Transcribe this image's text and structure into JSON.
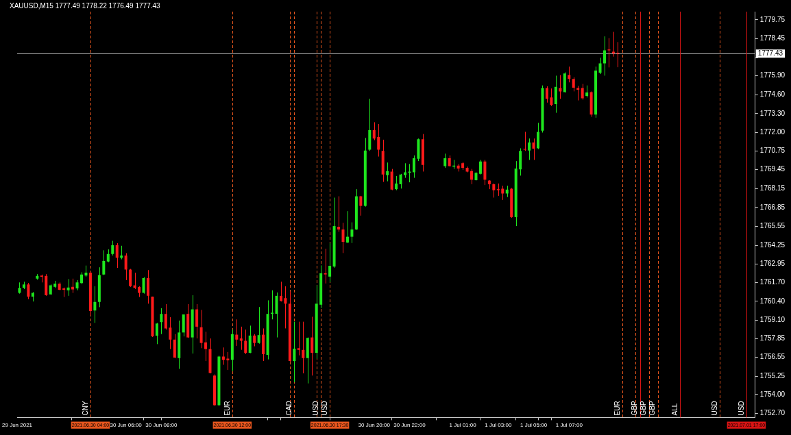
{
  "chart_data": {
    "type": "candlestick",
    "title": "XAUUSD,M15 1777.49 1778.22 1776.49 1777.43",
    "x": [
      "2021-06-30T00:00",
      "2021-06-30T00:15",
      "2021-06-30T00:30",
      "2021-06-30T00:45",
      "2021-06-30T01:00",
      "2021-06-30T01:15",
      "2021-06-30T01:30",
      "2021-06-30T01:45",
      "2021-06-30T02:00",
      "2021-06-30T02:15",
      "2021-06-30T02:30",
      "2021-06-30T02:45",
      "2021-06-30T03:00",
      "2021-06-30T03:15",
      "2021-06-30T03:30",
      "2021-06-30T03:45",
      "2021-06-30T04:00",
      "2021-06-30T04:15",
      "2021-06-30T04:30",
      "2021-06-30T04:45",
      "2021-06-30T05:00",
      "2021-06-30T05:15",
      "2021-06-30T05:30",
      "2021-06-30T05:45",
      "2021-06-30T06:00",
      "2021-06-30T06:15",
      "2021-06-30T06:30",
      "2021-06-30T06:45",
      "2021-06-30T07:00",
      "2021-06-30T07:15",
      "2021-06-30T07:30",
      "2021-06-30T07:45",
      "2021-06-30T08:00",
      "2021-06-30T08:15",
      "2021-06-30T08:30",
      "2021-06-30T08:45",
      "2021-06-30T09:00",
      "2021-06-30T09:15",
      "2021-06-30T09:30",
      "2021-06-30T09:45",
      "2021-06-30T10:00",
      "2021-06-30T10:15",
      "2021-06-30T10:30",
      "2021-06-30T10:45",
      "2021-06-30T11:00",
      "2021-06-30T11:15",
      "2021-06-30T11:30",
      "2021-06-30T11:45",
      "2021-06-30T12:00",
      "2021-06-30T12:15",
      "2021-06-30T12:30",
      "2021-06-30T12:45",
      "2021-06-30T13:00",
      "2021-06-30T13:15",
      "2021-06-30T13:30",
      "2021-06-30T13:45",
      "2021-06-30T14:00",
      "2021-06-30T14:15",
      "2021-06-30T14:30",
      "2021-06-30T14:45",
      "2021-06-30T15:00",
      "2021-06-30T15:15",
      "2021-06-30T15:30",
      "2021-06-30T15:45",
      "2021-06-30T16:00",
      "2021-06-30T16:15",
      "2021-06-30T16:30",
      "2021-06-30T16:45",
      "2021-06-30T17:00",
      "2021-06-30T17:15",
      "2021-06-30T17:30",
      "2021-06-30T17:45",
      "2021-06-30T18:00",
      "2021-06-30T18:15",
      "2021-06-30T18:30",
      "2021-06-30T18:45",
      "2021-06-30T19:00",
      "2021-06-30T19:15",
      "2021-06-30T19:30",
      "2021-06-30T19:45",
      "2021-06-30T20:00",
      "2021-06-30T20:15",
      "2021-06-30T20:30",
      "2021-06-30T20:45",
      "2021-06-30T21:00",
      "2021-06-30T21:15",
      "2021-06-30T21:30",
      "2021-06-30T21:45",
      "2021-06-30T22:00",
      "2021-06-30T22:15",
      "2021-06-30T22:30",
      "2021-06-30T22:45",
      "2021-07-01T00:00",
      "2021-07-01T00:15",
      "2021-07-01T00:30",
      "2021-07-01T00:45",
      "2021-07-01T01:00",
      "2021-07-01T01:15",
      "2021-07-01T01:30",
      "2021-07-01T01:45",
      "2021-07-01T02:00",
      "2021-07-01T02:15",
      "2021-07-01T02:30",
      "2021-07-01T02:45",
      "2021-07-01T03:00",
      "2021-07-01T03:15",
      "2021-07-01T03:30",
      "2021-07-01T03:45",
      "2021-07-01T04:00",
      "2021-07-01T04:15",
      "2021-07-01T04:30",
      "2021-07-01T04:45",
      "2021-07-01T05:00",
      "2021-07-01T05:15",
      "2021-07-01T05:30",
      "2021-07-01T05:45",
      "2021-07-01T06:00",
      "2021-07-01T06:15",
      "2021-07-01T06:30",
      "2021-07-01T06:45",
      "2021-07-01T07:00",
      "2021-07-01T07:15",
      "2021-07-01T07:30",
      "2021-07-01T07:45",
      "2021-07-01T08:00",
      "2021-07-01T08:15",
      "2021-07-01T08:30",
      "2021-07-01T08:45",
      "2021-07-01T09:00",
      "2021-07-01T09:15",
      "2021-07-01T09:30",
      "2021-07-01T09:45"
    ],
    "ohlc": [
      [
        1760.98,
        1761.7,
        1760.93,
        1761.32
      ],
      [
        1761.32,
        1761.75,
        1761.24,
        1761.56
      ],
      [
        1761.56,
        1761.66,
        1760.55,
        1760.73
      ],
      [
        1760.73,
        1761.04,
        1760.39,
        1760.98
      ],
      [
        1761.96,
        1762.27,
        1761.89,
        1762.15
      ],
      [
        1762.17,
        1762.24,
        1761.7,
        1762.09
      ],
      [
        1762.15,
        1762.27,
        1760.78,
        1760.82
      ],
      [
        1760.88,
        1761.56,
        1760.85,
        1761.5
      ],
      [
        1761.39,
        1761.81,
        1761.32,
        1761.62
      ],
      [
        1761.62,
        1761.7,
        1761.16,
        1761.19
      ],
      [
        1761.29,
        1761.35,
        1760.7,
        1761.19
      ],
      [
        1761.16,
        1761.93,
        1760.78,
        1761.35
      ],
      [
        1761.39,
        1761.96,
        1760.98,
        1761.22
      ],
      [
        1761.29,
        1761.86,
        1761.16,
        1761.7
      ],
      [
        1761.66,
        1762.4,
        1761.59,
        1762.24
      ],
      [
        1762.17,
        1762.86,
        1762.09,
        1762.37
      ],
      [
        1762.37,
        1762.43,
        1759.46,
        1759.74
      ],
      [
        1759.77,
        1761.44,
        1758.92,
        1760.36
      ],
      [
        1760.36,
        1762.74,
        1760.0,
        1762.21
      ],
      [
        1762.24,
        1763.91,
        1762.21,
        1763.17
      ],
      [
        1763.14,
        1763.97,
        1763.09,
        1763.66
      ],
      [
        1763.66,
        1764.56,
        1763.55,
        1764.25
      ],
      [
        1764.25,
        1764.4,
        1762.7,
        1763.4
      ],
      [
        1763.4,
        1764.22,
        1763.29,
        1763.55
      ],
      [
        1763.55,
        1763.71,
        1761.86,
        1762.58
      ],
      [
        1762.58,
        1762.63,
        1761.39,
        1761.44
      ],
      [
        1761.5,
        1762.37,
        1761.24,
        1761.32
      ],
      [
        1761.38,
        1761.44,
        1760.7,
        1760.98
      ],
      [
        1760.98,
        1762.06,
        1760.93,
        1762.0
      ],
      [
        1762.0,
        1762.55,
        1760.24,
        1760.78
      ],
      [
        1760.73,
        1760.73,
        1757.95,
        1758.0
      ],
      [
        1758.04,
        1758.92,
        1757.46,
        1758.88
      ],
      [
        1758.97,
        1759.93,
        1758.15,
        1759.54
      ],
      [
        1759.54,
        1760.21,
        1758.46,
        1758.54
      ],
      [
        1758.6,
        1759.31,
        1757.12,
        1757.77
      ],
      [
        1757.77,
        1758.15,
        1756.5,
        1756.53
      ],
      [
        1756.5,
        1759.08,
        1755.76,
        1758.26
      ],
      [
        1758.26,
        1759.5,
        1757.99,
        1759.5
      ],
      [
        1759.54,
        1760.21,
        1757.89,
        1757.92
      ],
      [
        1757.92,
        1760.82,
        1756.81,
        1759.85
      ],
      [
        1759.85,
        1760.21,
        1757.85,
        1758.66
      ],
      [
        1758.62,
        1759.81,
        1757.18,
        1757.54
      ],
      [
        1757.58,
        1758.31,
        1756.3,
        1757.12
      ],
      [
        1757.12,
        1757.85,
        1755.45,
        1755.48
      ],
      [
        1755.3,
        1755.38,
        1753.22,
        1753.26
      ],
      [
        1753.26,
        1756.66,
        1753.22,
        1756.61
      ],
      [
        1756.61,
        1757.23,
        1756.04,
        1756.38
      ],
      [
        1756.46,
        1756.92,
        1755.69,
        1756.35
      ],
      [
        1756.38,
        1758.46,
        1755.61,
        1758.15
      ],
      [
        1758.11,
        1759.16,
        1757.34,
        1757.77
      ],
      [
        1757.85,
        1758.66,
        1757.07,
        1757.69
      ],
      [
        1757.69,
        1758.46,
        1756.77,
        1756.87
      ],
      [
        1756.87,
        1758.73,
        1756.84,
        1758.05
      ],
      [
        1758.05,
        1758.15,
        1757.31,
        1757.54
      ],
      [
        1757.54,
        1760.01,
        1757.49,
        1758.08
      ],
      [
        1758.11,
        1758.54,
        1756.3,
        1756.77
      ],
      [
        1756.72,
        1760.47,
        1756.41,
        1759.54
      ],
      [
        1759.54,
        1761.16,
        1759.16,
        1759.62
      ],
      [
        1759.54,
        1761.01,
        1757.92,
        1760.78
      ],
      [
        1760.78,
        1761.75,
        1760.39,
        1760.42
      ],
      [
        1760.62,
        1761.44,
        1758.54,
        1760.24
      ],
      [
        1760.24,
        1761.08,
        1756.23,
        1756.3
      ],
      [
        1756.3,
        1759.0,
        1754.84,
        1757.15
      ],
      [
        1757.18,
        1759.0,
        1756.69,
        1757.07
      ],
      [
        1757.07,
        1759.0,
        1755.45,
        1756.5
      ],
      [
        1756.5,
        1757.92,
        1754.76,
        1757.89
      ],
      [
        1757.92,
        1759.34,
        1755.3,
        1756.87
      ],
      [
        1756.87,
        1761.5,
        1756.46,
        1760.24
      ],
      [
        1760.17,
        1762.87,
        1759.94,
        1762.33
      ],
      [
        1762.33,
        1764.02,
        1761.63,
        1762.25
      ],
      [
        1762.1,
        1764.41,
        1761.71,
        1762.84
      ],
      [
        1762.79,
        1767.53,
        1762.71,
        1765.57
      ],
      [
        1765.52,
        1767.62,
        1765.18,
        1765.34
      ],
      [
        1765.34,
        1765.8,
        1763.72,
        1764.49
      ],
      [
        1764.44,
        1766.6,
        1764.41,
        1764.84
      ],
      [
        1764.84,
        1765.83,
        1764.41,
        1765.34
      ],
      [
        1765.34,
        1768.11,
        1765.31,
        1767.62
      ],
      [
        1767.62,
        1767.65,
        1766.29,
        1766.96
      ],
      [
        1766.96,
        1771.63,
        1766.91,
        1770.77
      ],
      [
        1770.82,
        1774.32,
        1770.74,
        1772.16
      ],
      [
        1772.16,
        1772.71,
        1771.48,
        1771.59
      ],
      [
        1771.69,
        1772.59,
        1770.35,
        1770.82
      ],
      [
        1770.74,
        1771.51,
        1768.61,
        1769.12
      ],
      [
        1769.07,
        1769.94,
        1768.65,
        1769.35
      ],
      [
        1769.32,
        1769.5,
        1768.04,
        1768.08
      ],
      [
        1768.11,
        1769.01,
        1768.04,
        1768.5
      ],
      [
        1768.45,
        1769.16,
        1768.15,
        1769.12
      ],
      [
        1769.07,
        1769.89,
        1768.89,
        1769.27
      ],
      [
        1769.23,
        1769.84,
        1768.58,
        1769.32
      ],
      [
        1769.27,
        1770.43,
        1768.89,
        1770.24
      ],
      [
        1770.2,
        1771.59,
        1770.04,
        1771.54
      ],
      [
        1771.54,
        1771.9,
        1769.32,
        1769.78
      ],
      [
        1769.69,
        1770.55,
        1769.58,
        1770.24
      ],
      [
        1770.24,
        1770.43,
        1769.66,
        1769.69
      ],
      [
        1769.66,
        1770.12,
        1769.5,
        1769.73
      ],
      [
        1769.73,
        1769.84,
        1769.32,
        1769.53
      ],
      [
        1769.89,
        1769.97,
        1769.43,
        1769.58
      ],
      [
        1769.58,
        1769.66,
        1769.27,
        1769.32
      ],
      [
        1769.35,
        1769.5,
        1768.45,
        1768.76
      ],
      [
        1768.73,
        1769.27,
        1768.7,
        1769.23
      ],
      [
        1769.16,
        1770.12,
        1769.12,
        1770.01
      ],
      [
        1770.01,
        1770.12,
        1768.39,
        1768.76
      ],
      [
        1768.7,
        1768.73,
        1768.11,
        1768.45
      ],
      [
        1768.45,
        1768.5,
        1767.53,
        1768.04
      ],
      [
        1768.11,
        1768.5,
        1767.65,
        1768.04
      ],
      [
        1768.14,
        1768.35,
        1767.37,
        1767.81
      ],
      [
        1767.81,
        1768.35,
        1767.57,
        1768.08
      ],
      [
        1768.14,
        1768.19,
        1766.14,
        1766.19
      ],
      [
        1766.19,
        1770.04,
        1765.57,
        1769.53
      ],
      [
        1769.47,
        1770.92,
        1769.04,
        1770.74
      ],
      [
        1770.88,
        1772.05,
        1770.74,
        1770.82
      ],
      [
        1770.77,
        1771.59,
        1770.12,
        1771.32
      ],
      [
        1771.32,
        1771.59,
        1770.12,
        1770.89
      ],
      [
        1770.92,
        1772.67,
        1770.86,
        1772.05
      ],
      [
        1772.13,
        1775.24,
        1772.0,
        1775.06
      ],
      [
        1775.06,
        1775.18,
        1774.06,
        1774.32
      ],
      [
        1774.41,
        1775.03,
        1773.82,
        1773.9
      ],
      [
        1773.95,
        1775.91,
        1773.36,
        1775.14
      ],
      [
        1775.06,
        1775.95,
        1774.32,
        1774.83
      ],
      [
        1774.78,
        1776.14,
        1774.75,
        1776.06
      ],
      [
        1775.95,
        1776.53,
        1775.45,
        1775.68
      ],
      [
        1775.68,
        1775.8,
        1774.83,
        1775.09
      ],
      [
        1775.06,
        1775.21,
        1774.21,
        1774.94
      ],
      [
        1775.06,
        1775.34,
        1774.26,
        1774.36
      ],
      [
        1774.52,
        1775.24,
        1774.41,
        1774.75
      ],
      [
        1774.78,
        1774.83,
        1773.08,
        1773.24
      ],
      [
        1773.24,
        1776.53,
        1773.02,
        1776.26
      ],
      [
        1776.11,
        1777.14,
        1776.02,
        1776.76
      ],
      [
        1776.76,
        1778.61,
        1775.91,
        1777.65
      ],
      [
        1777.71,
        1778.49,
        1776.48,
        1777.65
      ],
      [
        1777.56,
        1778.92,
        1777.22,
        1777.45
      ],
      [
        1777.49,
        1778.22,
        1776.49,
        1777.43
      ]
    ],
    "colors": [
      "#1ee61e",
      "#1ee61e",
      "#ff1a1a",
      "#1ee61e",
      "#1ee61e",
      "#ff1a1a",
      "#ff1a1a",
      "#1ee61e",
      "#1ee61e",
      "#ff1a1a",
      "#ff1a1a",
      "#1ee61e",
      "#ff1a1a",
      "#1ee61e",
      "#1ee61e",
      "#1ee61e",
      "#ff1a1a",
      "#1ee61e",
      "#1ee61e",
      "#1ee61e",
      "#1ee61e",
      "#1ee61e",
      "#ff1a1a",
      "#1ee61e",
      "#ff1a1a",
      "#ff1a1a",
      "#ff1a1a",
      "#ff1a1a",
      "#1ee61e",
      "#ff1a1a",
      "#ff1a1a",
      "#1ee61e",
      "#1ee61e",
      "#ff1a1a",
      "#ff1a1a",
      "#ff1a1a",
      "#1ee61e",
      "#1ee61e",
      "#ff1a1a",
      "#1ee61e",
      "#ff1a1a",
      "#ff1a1a",
      "#ff1a1a",
      "#ff1a1a",
      "#ff1a1a",
      "#1ee61e",
      "#ff1a1a",
      "#ff1a1a",
      "#1ee61e",
      "#ff1a1a",
      "#ff1a1a",
      "#ff1a1a",
      "#1ee61e",
      "#ff1a1a",
      "#1ee61e",
      "#ff1a1a",
      "#1ee61e",
      "#1ee61e",
      "#1ee61e",
      "#ff1a1a",
      "#ff1a1a",
      "#ff1a1a",
      "#1ee61e",
      "#ff1a1a",
      "#ff1a1a",
      "#1ee61e",
      "#ff1a1a",
      "#1ee61e",
      "#1ee61e",
      "#ff1a1a",
      "#1ee61e",
      "#1ee61e",
      "#ff1a1a",
      "#ff1a1a",
      "#1ee61e",
      "#1ee61e",
      "#1ee61e",
      "#ff1a1a",
      "#1ee61e",
      "#1ee61e",
      "#ff1a1a",
      "#ff1a1a",
      "#ff1a1a",
      "#1ee61e",
      "#ff1a1a",
      "#1ee61e",
      "#1ee61e",
      "#1ee61e",
      "#1ee61e",
      "#1ee61e",
      "#1ee61e",
      "#ff1a1a",
      "#1ee61e",
      "#ff1a1a",
      "#1ee61e",
      "#ff1a1a",
      "#ff1a1a",
      "#ff1a1a",
      "#ff1a1a",
      "#1ee61e",
      "#1ee61e",
      "#ff1a1a",
      "#ff1a1a",
      "#ff1a1a",
      "#ff1a1a",
      "#ff1a1a",
      "#1ee61e",
      "#ff1a1a",
      "#1ee61e",
      "#1ee61e",
      "#ff1a1a",
      "#1ee61e",
      "#ff1a1a",
      "#1ee61e",
      "#1ee61e",
      "#ff1a1a",
      "#ff1a1a",
      "#1ee61e",
      "#ff1a1a",
      "#1ee61e",
      "#ff1a1a",
      "#ff1a1a",
      "#ff1a1a",
      "#ff1a1a",
      "#1ee61e",
      "#ff1a1a",
      "#1ee61e",
      "#1ee61e",
      "#1ee61e",
      "#ff1a1a",
      "#ff1a1a",
      "#ff1a1a"
    ],
    "xlim": [
      "2021-06-29T23:52",
      "2021-07-01T17:30"
    ],
    "xticks": [
      {
        "value": "2021-06-29T23:52",
        "label": "29 Jun 2021"
      },
      {
        "value": "2021-06-30T06:00",
        "label": "30 Jun 06:00"
      },
      {
        "value": "2021-06-30T08:00",
        "label": "30 Jun 08:00"
      },
      {
        "value": "2021-06-30T20:00",
        "label": "30 Jun 20:00"
      },
      {
        "value": "2021-06-30T22:00",
        "label": "30 Jun 22:00"
      },
      {
        "value": "2021-07-01T01:00",
        "label": "1 Jul 01:00"
      },
      {
        "value": "2021-07-01T03:00",
        "label": "1 Jul 03:00"
      },
      {
        "value": "2021-07-01T05:00",
        "label": "1 Jul 05:00"
      },
      {
        "value": "2021-07-01T07:00",
        "label": "1 Jul 07:00"
      },
      {
        "value": "2021-06-30T04:00",
        "label": "2021.06.30 04:00"
      },
      {
        "value": "2021-06-30T12:00",
        "label": "2021.06.30 12:00"
      },
      {
        "value": "2021-06-30T17:30",
        "label": "2021.06.30 17:30"
      },
      {
        "value": "2021-07-01T17:00",
        "label": "2021.07.01 17:00"
      }
    ],
    "ylim": [
      1752.42,
      1780.31
    ],
    "yticks": [
      {
        "value": 1752.7,
        "label": "1752.70"
      },
      {
        "value": 1754,
        "label": "1754.00"
      },
      1755.25,
      1756.55,
      1757.85,
      {
        "value": 1759.1,
        "label": "1759.10"
      },
      {
        "value": 1760.4,
        "label": "1760.40"
      },
      {
        "value": 1761.7,
        "label": "1761.70"
      },
      1762.95,
      1764.25,
      1765.55,
      1766.85,
      1768.15,
      1769.45,
      1770.75,
      {
        "value": 1772,
        "label": "1772.00"
      },
      {
        "value": 1773.3,
        "label": "1773.30"
      },
      {
        "value": 1774.6,
        "label": "1774.60"
      },
      {
        "value": 1775.9,
        "label": "1775.90"
      },
      {
        "value": 1777.15,
        "label": null
      },
      1778.45,
      1779.75
    ],
    "ref_lines": [
      {
        "axis": "y",
        "value": 1777.43,
        "label": "1777.43",
        "color": "#a8a8a8",
        "line_style": "solid"
      },
      {
        "axis": "x",
        "value": "2021-06-30T04:00",
        "label": "CNY",
        "color": "#e8561e",
        "line_style": "dashed"
      },
      {
        "axis": "x",
        "value": "2021-06-30T12:00",
        "label": "EUR",
        "color": "#e8561e",
        "line_style": "dashed"
      },
      {
        "axis": "x",
        "value": "2021-06-30T15:15",
        "color": "#e8561e",
        "line_style": "dashed"
      },
      {
        "axis": "x",
        "value": "2021-06-30T15:30",
        "label": "CAD",
        "color": "#e8561e",
        "line_style": "dashed"
      },
      {
        "axis": "x",
        "value": "2021-06-30T16:45",
        "color": "#e8561e",
        "line_style": "dashed"
      },
      {
        "axis": "x",
        "value": "2021-06-30T17:00",
        "label": "USD",
        "color": "#e8561e",
        "line_style": "dashed"
      },
      {
        "axis": "x",
        "value": "2021-06-30T17:30",
        "label": "USD",
        "color": "#e8561e",
        "line_style": "dashed"
      },
      {
        "axis": "x",
        "value": "2021-07-01T10:00",
        "label": "EUR",
        "color": "#e8561e",
        "line_style": "dashed"
      },
      {
        "axis": "x",
        "value": "2021-07-01T10:45",
        "color": "#e8561e",
        "line_style": "dashed"
      },
      {
        "axis": "x",
        "value": "2021-07-01T11:00",
        "label": "GBP",
        "color": "#d81414",
        "line_style": "solid"
      },
      {
        "axis": "x",
        "value": "2021-07-01T11:30",
        "label": "GBP",
        "color": "#e8561e",
        "line_style": "dashed"
      },
      {
        "axis": "x",
        "value": "2021-07-01T12:00",
        "label": "GBP",
        "color": "#e8561e",
        "line_style": "dashed"
      },
      {
        "axis": "x",
        "value": "2021-07-01T13:15",
        "label": "ALL",
        "color": "#d81414",
        "line_style": "solid"
      },
      {
        "axis": "x",
        "value": "2021-07-01T15:30",
        "label": "USD",
        "color": "#e8561e",
        "line_style": "dashed"
      },
      {
        "axis": "x",
        "value": "2021-07-01T17:00",
        "label": "USD",
        "color": "#d81414",
        "line_style": "solid"
      }
    ]
  }
}
